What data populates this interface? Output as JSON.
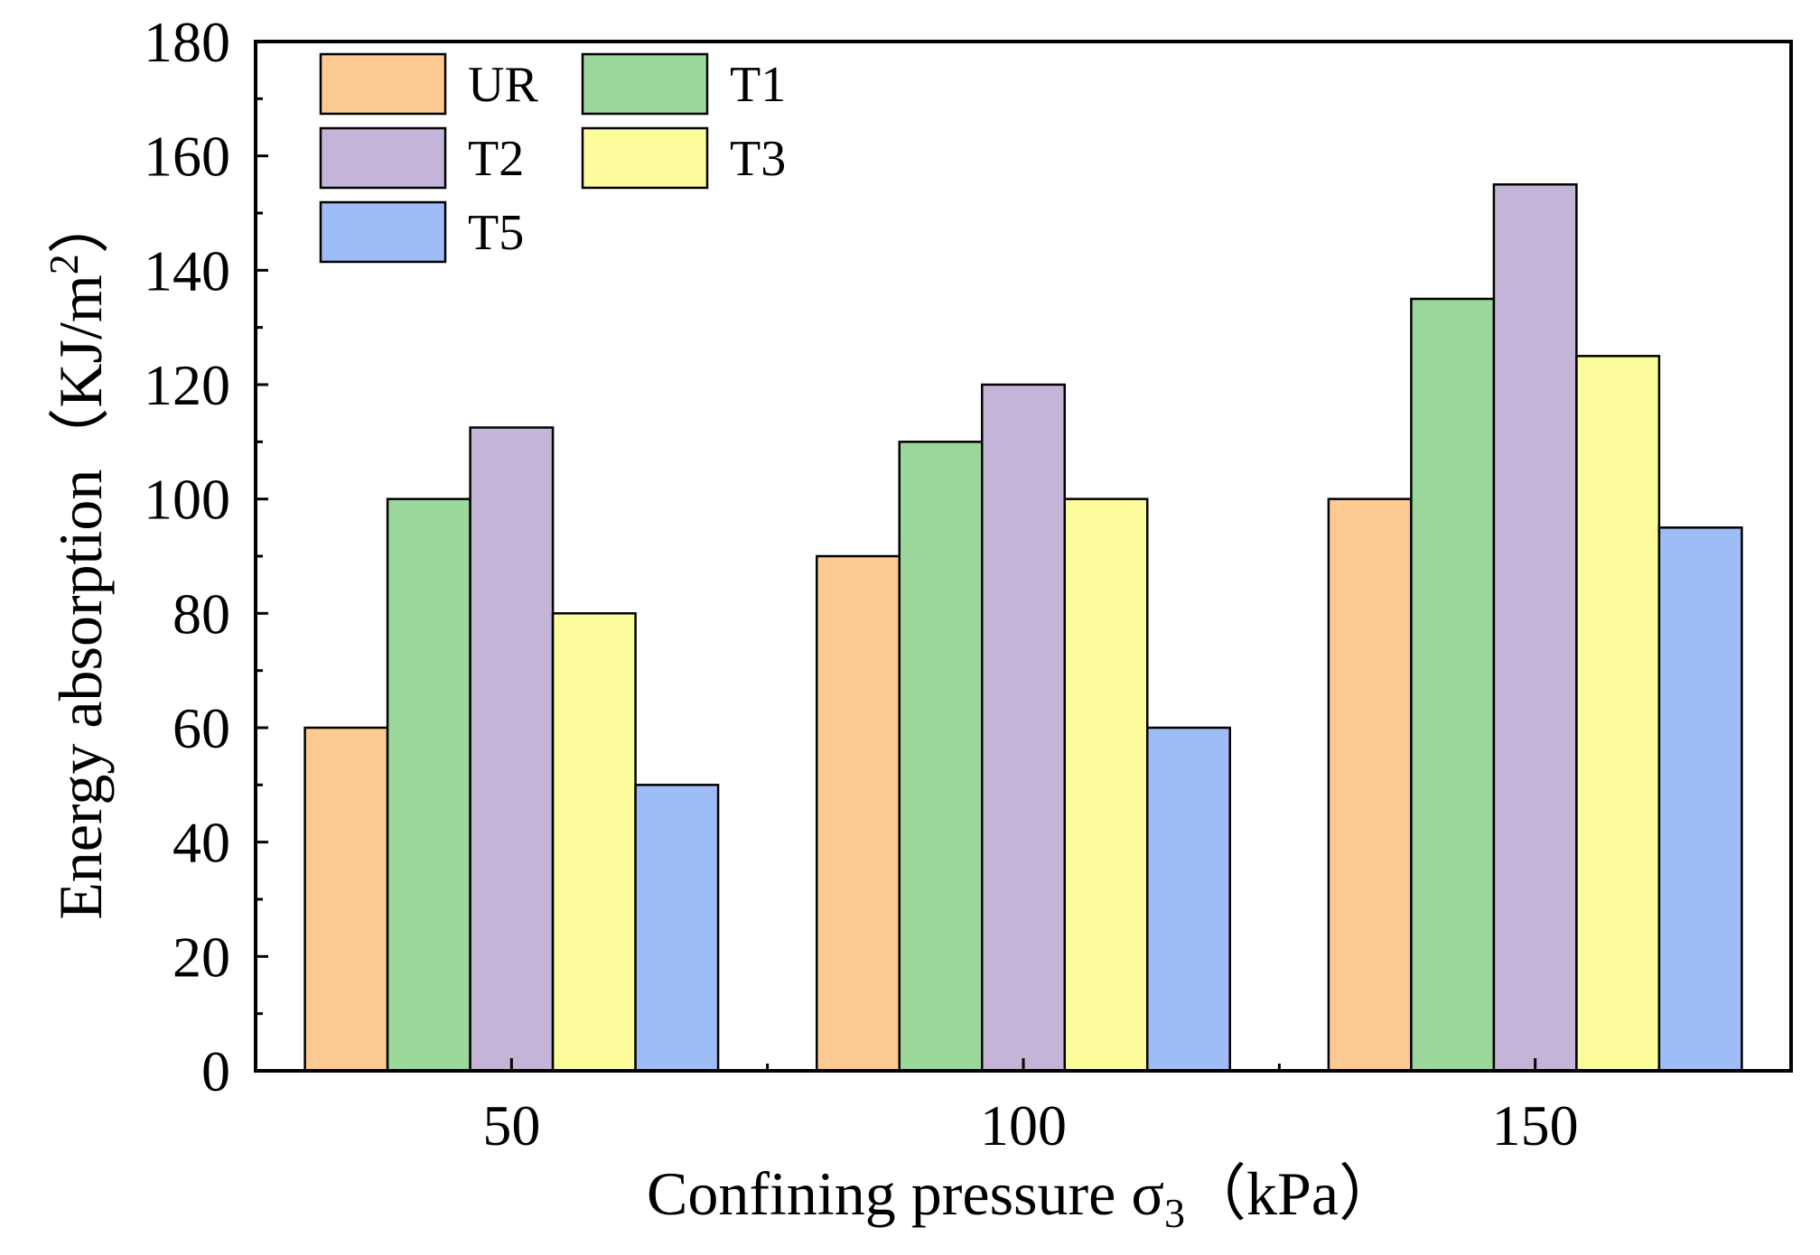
{
  "chart_data": {
    "type": "bar",
    "categories": [
      "50",
      "100",
      "150"
    ],
    "series": [
      {
        "name": "UR",
        "color": "#FDCB92",
        "values": [
          60,
          90,
          100
        ]
      },
      {
        "name": "T1",
        "color": "#9BD79B",
        "values": [
          100,
          110,
          135
        ]
      },
      {
        "name": "T2",
        "color": "#C4B5D8",
        "values": [
          112.5,
          120,
          155
        ]
      },
      {
        "name": "T3",
        "color": "#FCFC9C",
        "values": [
          80,
          100,
          125
        ]
      },
      {
        "name": "T5",
        "color": "#9EBCF6",
        "values": [
          50,
          60,
          95
        ]
      }
    ],
    "xlabel": {
      "main": "Confining pressure σ",
      "sub": "3",
      "unit": "（kPa）"
    },
    "ylabel": {
      "main": "Energy absorption（KJ/m",
      "sup": "2",
      "end": "）"
    },
    "ylim": [
      0,
      180
    ],
    "yticks": [
      0,
      20,
      40,
      60,
      80,
      100,
      120,
      140,
      160,
      180
    ],
    "legend_position": "top-left"
  }
}
